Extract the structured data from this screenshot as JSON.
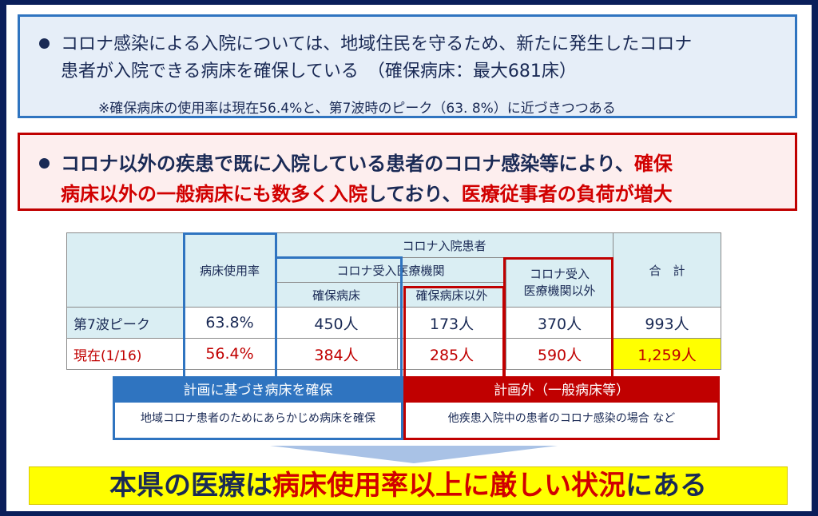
{
  "box1": {
    "line1": "コロナ感染による入院については、地域住民を守るため、新たに発生したコロナ",
    "line2": "患者が入院できる病床を確保している　（確保病床：最大681床）",
    "note": "※確保病床の使用率は現在56.4%と、第7波時のピーク（63. 8%）に近づきつつある"
  },
  "box2": {
    "line1_a": "コロナ以外の疾患で既に入院している患者のコロナ感染等により、",
    "line1_b": "確保",
    "line2_a": "病床以外の一般病床にも数多く入院",
    "line2_b": "しており、",
    "line2_c": "医療従事者の負荷が増大"
  },
  "table": {
    "h_rate": "病床使用率",
    "h_corona": "コロナ入院患者",
    "h_accept": "コロナ受入医療機関",
    "h_other": "コロナ受入\n医療機関以外",
    "h_total": "合　計",
    "h_secured": "確保病床",
    "h_not_secured": "確保病床以外",
    "rows": [
      {
        "label": "第7波ピーク",
        "rate": "63.8%",
        "secured": "450人",
        "not_secured": "173人",
        "other": "370人",
        "total": "993人"
      },
      {
        "label": "現在(1/16)",
        "rate": "56.4%",
        "secured": "384人",
        "not_secured": "285人",
        "other": "590人",
        "total": "1,259人"
      }
    ]
  },
  "labels": {
    "blue_head": "計画に基づき病床を確保",
    "blue_body": "地域コロナ患者のためにあらかじめ病床を確保",
    "red_head": "計画外（一般病床等）",
    "red_body": "他疾患入院中の患者のコロナ感染の場合 など"
  },
  "conclusion": {
    "part1": "本県の医療は",
    "part2": "病床使用率以上に厳しい状況",
    "part3": "にある"
  },
  "colors": {
    "blue": "#2f74c0",
    "red": "#c00000",
    "yellow": "#ffff00"
  }
}
